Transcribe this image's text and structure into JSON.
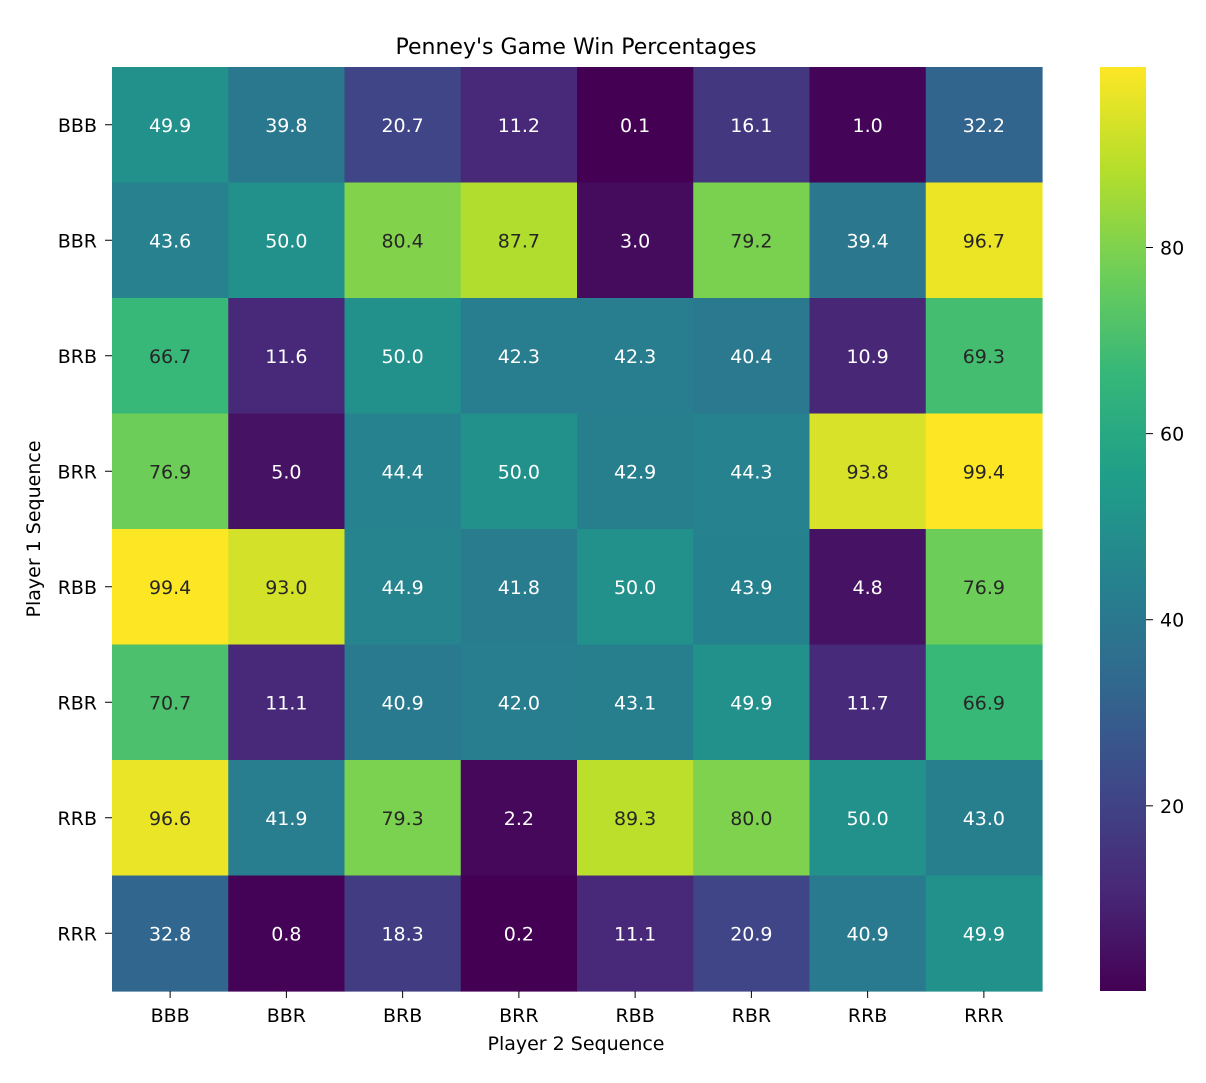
{
  "chart_data": {
    "type": "heatmap",
    "title": "Penney's Game Win Percentages",
    "xlabel": "Player 2 Sequence",
    "ylabel": "Player 1 Sequence",
    "x_categories": [
      "BBB",
      "BBR",
      "BRB",
      "BRR",
      "RBB",
      "RBR",
      "RRB",
      "RRR"
    ],
    "y_categories": [
      "BBB",
      "BBR",
      "BRB",
      "BRR",
      "RBB",
      "RBR",
      "RRB",
      "RRR"
    ],
    "values": [
      [
        49.9,
        39.8,
        20.7,
        11.2,
        0.1,
        16.1,
        1.0,
        32.2
      ],
      [
        43.6,
        50.0,
        80.4,
        87.7,
        3.0,
        79.2,
        39.4,
        96.7
      ],
      [
        66.7,
        11.6,
        50.0,
        42.3,
        42.3,
        40.4,
        10.9,
        69.3
      ],
      [
        76.9,
        5.0,
        44.4,
        50.0,
        42.9,
        44.3,
        93.8,
        99.4
      ],
      [
        99.4,
        93.0,
        44.9,
        41.8,
        50.0,
        43.9,
        4.8,
        76.9
      ],
      [
        70.7,
        11.1,
        40.9,
        42.0,
        43.1,
        49.9,
        11.7,
        66.9
      ],
      [
        96.6,
        41.9,
        79.3,
        2.2,
        89.3,
        80.0,
        50.0,
        43.0
      ],
      [
        32.8,
        0.8,
        18.3,
        0.2,
        11.1,
        20.9,
        40.9,
        49.9
      ]
    ],
    "colormap": "viridis",
    "color_range": [
      0.1,
      99.4
    ],
    "colorbar_ticks": [
      20,
      40,
      60,
      80
    ],
    "annotations": true
  }
}
